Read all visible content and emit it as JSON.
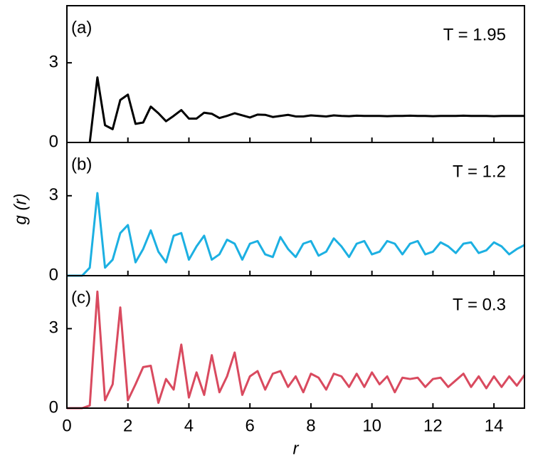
{
  "chart_data": [
    {
      "type": "line",
      "panel_label": "(a)",
      "annotation": "T = 1.95",
      "x": [
        0,
        0.25,
        0.5,
        0.75,
        1,
        1.25,
        1.5,
        1.75,
        2,
        2.25,
        2.5,
        2.75,
        3,
        3.25,
        3.5,
        3.75,
        4,
        4.25,
        4.5,
        4.75,
        5,
        5.25,
        5.5,
        5.75,
        6,
        6.25,
        6.5,
        6.75,
        7,
        7.25,
        7.5,
        7.75,
        8,
        8.25,
        8.5,
        8.75,
        9,
        9.25,
        9.5,
        9.75,
        10,
        10.25,
        10.5,
        10.75,
        11,
        11.25,
        11.5,
        11.75,
        12,
        12.25,
        12.5,
        12.75,
        13,
        13.25,
        13.5,
        13.75,
        14,
        14.25,
        14.5,
        14.75,
        15
      ],
      "series": [
        {
          "color": "#000000",
          "values": [
            null,
            null,
            null,
            0,
            2.45,
            0.65,
            0.5,
            1.6,
            1.8,
            0.7,
            0.75,
            1.35,
            1.1,
            0.8,
            1.0,
            1.22,
            0.9,
            0.9,
            1.12,
            1.08,
            0.92,
            1.0,
            1.1,
            1.02,
            0.94,
            1.05,
            1.04,
            0.96,
            1.0,
            1.04,
            0.98,
            0.98,
            1.02,
            1.0,
            0.98,
            1.02,
            1.0,
            0.99,
            1.01,
            1.0,
            1.0,
            1.0,
            0.99,
            1.0,
            1.0,
            1.01,
            1.0,
            1.0,
            0.99,
            1.0,
            1.0,
            1.0,
            1.01,
            1.0,
            1.0,
            1.0,
            0.99,
            1.0,
            1.0,
            1.0,
            1.0
          ]
        }
      ],
      "xlim": [
        0,
        15
      ],
      "xticks": [
        0,
        2,
        4,
        6,
        8,
        10,
        12,
        14
      ],
      "ylim": [
        0,
        5.15
      ],
      "yticks": [
        0,
        3
      ]
    },
    {
      "type": "line",
      "panel_label": "(b)",
      "annotation": "T = 1.2",
      "ylabel": "g (r)",
      "x": [
        0,
        0.25,
        0.5,
        0.75,
        1,
        1.25,
        1.5,
        1.75,
        2,
        2.25,
        2.5,
        2.75,
        3,
        3.25,
        3.5,
        3.75,
        4,
        4.25,
        4.5,
        4.75,
        5,
        5.25,
        5.5,
        5.75,
        6,
        6.25,
        6.5,
        6.75,
        7,
        7.25,
        7.5,
        7.75,
        8,
        8.25,
        8.5,
        8.75,
        9,
        9.25,
        9.5,
        9.75,
        10,
        10.25,
        10.5,
        10.75,
        11,
        11.25,
        11.5,
        11.75,
        12,
        12.25,
        12.5,
        12.75,
        13,
        13.25,
        13.5,
        13.75,
        14,
        14.25,
        14.5,
        14.75,
        15
      ],
      "series": [
        {
          "color": "#1cb0e2",
          "values": [
            0,
            0,
            0,
            0.3,
            3.1,
            0.3,
            0.6,
            1.6,
            1.9,
            0.5,
            1.0,
            1.7,
            0.9,
            0.5,
            1.5,
            1.6,
            0.6,
            1.1,
            1.5,
            0.6,
            0.8,
            1.35,
            1.2,
            0.6,
            1.2,
            1.3,
            0.8,
            0.7,
            1.45,
            1.0,
            0.7,
            1.2,
            1.3,
            0.75,
            0.9,
            1.4,
            1.1,
            0.7,
            1.2,
            1.3,
            0.8,
            0.9,
            1.3,
            1.2,
            0.8,
            1.2,
            1.3,
            0.8,
            0.9,
            1.25,
            1.1,
            0.85,
            1.2,
            1.25,
            0.85,
            0.95,
            1.25,
            1.1,
            0.8,
            1.0,
            1.15
          ]
        }
      ],
      "xlim": [
        0,
        15
      ],
      "xticks": [
        0,
        2,
        4,
        6,
        8,
        10,
        12,
        14
      ],
      "ylim": [
        0,
        5
      ],
      "yticks": [
        0,
        3
      ]
    },
    {
      "type": "line",
      "panel_label": "(c)",
      "annotation": "T = 0.3",
      "xlabel": "r",
      "x": [
        0,
        0.25,
        0.5,
        0.75,
        1,
        1.25,
        1.5,
        1.75,
        2,
        2.25,
        2.5,
        2.75,
        3,
        3.25,
        3.5,
        3.75,
        4,
        4.25,
        4.5,
        4.75,
        5,
        5.25,
        5.5,
        5.75,
        6,
        6.25,
        6.5,
        6.75,
        7,
        7.25,
        7.5,
        7.75,
        8,
        8.25,
        8.5,
        8.75,
        9,
        9.25,
        9.5,
        9.75,
        10,
        10.25,
        10.5,
        10.75,
        11,
        11.25,
        11.5,
        11.75,
        12,
        12.25,
        12.5,
        12.75,
        13,
        13.25,
        13.5,
        13.75,
        14,
        14.25,
        14.5,
        14.75,
        15
      ],
      "series": [
        {
          "color": "#d94a5f",
          "values": [
            0,
            0,
            0,
            0.1,
            4.4,
            0.3,
            0.9,
            3.8,
            0.3,
            0.9,
            1.55,
            1.6,
            0.2,
            1.1,
            0.7,
            2.4,
            0.4,
            1.35,
            0.5,
            2.0,
            0.6,
            1.2,
            2.1,
            0.5,
            1.2,
            1.4,
            0.7,
            1.3,
            1.4,
            0.8,
            1.2,
            0.6,
            1.3,
            1.15,
            0.7,
            1.3,
            1.2,
            0.8,
            1.3,
            0.8,
            1.35,
            0.9,
            1.2,
            0.6,
            1.15,
            1.1,
            1.15,
            0.8,
            1.1,
            1.15,
            0.8,
            1.05,
            1.3,
            0.8,
            1.2,
            0.75,
            1.2,
            0.8,
            1.2,
            0.85,
            1.25
          ]
        }
      ],
      "xlim": [
        0,
        15
      ],
      "xticks": [
        0,
        2,
        4,
        6,
        8,
        10,
        12,
        14
      ],
      "ylim": [
        0,
        5
      ],
      "yticks": [
        0,
        3
      ]
    }
  ]
}
